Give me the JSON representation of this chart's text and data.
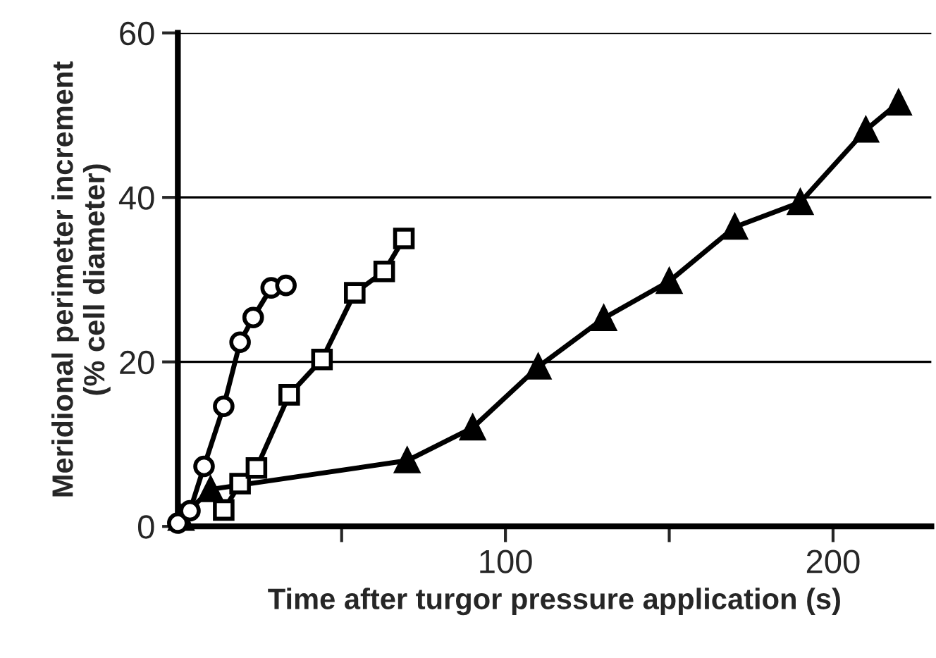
{
  "chart_data": {
    "type": "line",
    "xlabel": "Time after turgor pressure application (s)",
    "ylabel": "Meridional perimeter increment\n(% cell diameter)",
    "xlim": [
      0,
      230
    ],
    "ylim": [
      0,
      60
    ],
    "xticks": [
      {
        "value": 50,
        "label": null
      },
      100,
      {
        "value": 150,
        "label": null
      },
      200
    ],
    "yticks": [
      0,
      20,
      40,
      60
    ],
    "grid": "y",
    "legend": false,
    "series": [
      {
        "color": "#000000",
        "marker": "circle",
        "x": [
          0,
          3.7,
          8,
          14,
          19,
          23,
          28.5,
          33
        ],
        "values": [
          0.4,
          1.9,
          7.3,
          14.6,
          22.4,
          25.4,
          29,
          29.3
        ]
      },
      {
        "color": "#000000",
        "marker": "square",
        "x": [
          14,
          19,
          24,
          34,
          44,
          54,
          63,
          69
        ],
        "values": [
          2,
          5.2,
          7.1,
          16,
          20.3,
          28.4,
          31,
          35
        ]
      },
      {
        "color": "#000000",
        "marker": "triangle",
        "x": [
          1,
          10,
          70,
          90,
          110,
          130,
          150,
          170,
          190,
          210,
          220
        ],
        "values": [
          1,
          4.5,
          8,
          12,
          19.4,
          25.3,
          29.8,
          36.4,
          39.4,
          48.2,
          51.5
        ]
      }
    ]
  }
}
